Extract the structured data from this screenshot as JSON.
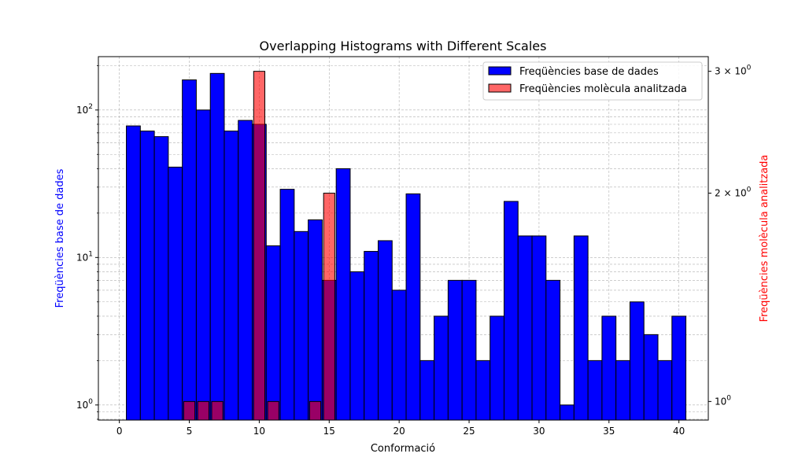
{
  "chart_data": {
    "type": "bar",
    "title": "Overlapping Histograms with Different Scales",
    "xlabel": "Conformació",
    "ylabel_left": "Freqüències base de dades",
    "ylabel_right": "Freqüències molècula analitzada",
    "xlim": [
      -1.5,
      42.1
    ],
    "left_axis": {
      "scale": "log",
      "ylim": [
        0.79,
        230
      ]
    },
    "right_axis": {
      "scale": "log",
      "ylim": [
        0.94,
        3.15
      ]
    },
    "x_ticks": [
      0,
      5,
      10,
      15,
      20,
      25,
      30,
      35,
      40
    ],
    "x_tick_labels": [
      "0",
      "5",
      "10",
      "15",
      "20",
      "25",
      "30",
      "35",
      "40"
    ],
    "left_ticks": [
      {
        "value": 1,
        "base": "10",
        "exp": "0"
      },
      {
        "value": 10,
        "base": "10",
        "exp": "1"
      },
      {
        "value": 100,
        "base": "10",
        "exp": "2"
      }
    ],
    "right_ticks": [
      {
        "value": 1,
        "coef": "10",
        "exp": "0"
      },
      {
        "value": 2,
        "coef": "2 × 10",
        "exp": "0"
      },
      {
        "value": 3,
        "coef": "3 × 10",
        "exp": "0"
      }
    ],
    "grid": true,
    "legend_position": "top-right",
    "series": [
      {
        "name": "Freqüències base de dades",
        "axis": "left",
        "color": "#0000ff",
        "alpha": 1.0,
        "x": [
          1,
          2,
          3,
          4,
          5,
          6,
          7,
          8,
          9,
          10,
          11,
          12,
          13,
          14,
          15,
          16,
          17,
          18,
          19,
          20,
          21,
          22,
          23,
          24,
          25,
          26,
          27,
          28,
          29,
          30,
          31,
          32,
          33,
          34,
          35,
          36,
          37,
          38,
          39,
          40
        ],
        "values": [
          78,
          72,
          66,
          41,
          160,
          100,
          177,
          72,
          85,
          80,
          12,
          29,
          15,
          18,
          7,
          40,
          8,
          11,
          13,
          6,
          27,
          2,
          4,
          7,
          7,
          2,
          4,
          24,
          14,
          14,
          7,
          1,
          14,
          2,
          4,
          2,
          5,
          3,
          2,
          4
        ]
      },
      {
        "name": "Freqüències molècula analitzada",
        "axis": "right",
        "color": "#ff0000",
        "alpha": 0.6,
        "x": [
          5,
          6,
          7,
          10,
          11,
          14,
          15
        ],
        "values": [
          1,
          1,
          1,
          3,
          1,
          1,
          2
        ]
      }
    ]
  }
}
